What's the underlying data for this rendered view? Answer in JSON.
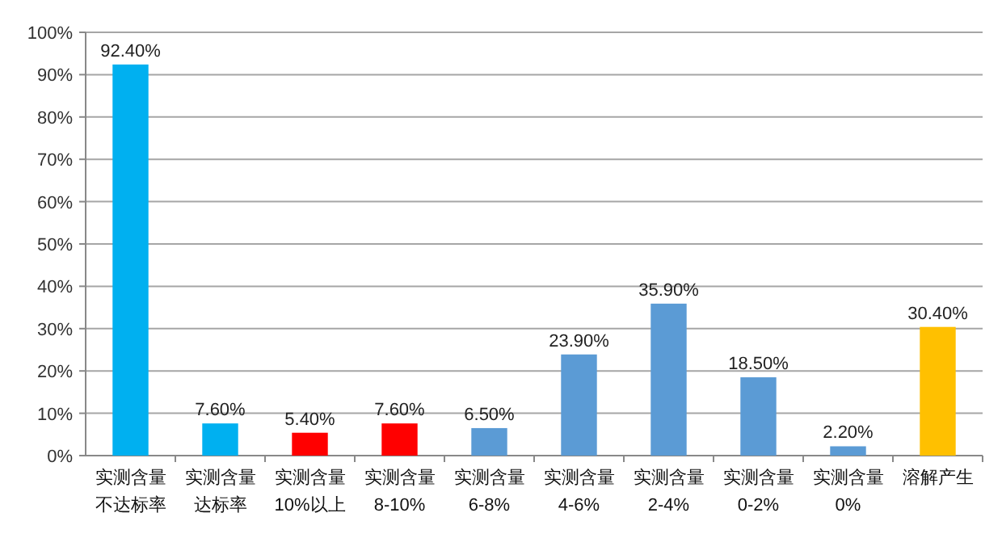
{
  "chart_data": {
    "type": "bar",
    "categories": [
      "实测含量不达标率",
      "实测含量达标率",
      "实测含量10%以上",
      "实测含量8-10%",
      "实测含量6-8%",
      "实测含量4-6%",
      "实测含量2-4%",
      "实测含量0-2%",
      "实测含量0%",
      "溶解产生"
    ],
    "values": [
      92.4,
      7.6,
      5.4,
      7.6,
      6.5,
      23.9,
      35.9,
      18.5,
      2.2,
      30.4
    ],
    "colors": [
      "#00b0f0",
      "#00b0f0",
      "#ff0000",
      "#ff0000",
      "#5b9bd5",
      "#5b9bd5",
      "#5b9bd5",
      "#5b9bd5",
      "#5b9bd5",
      "#ffc000"
    ],
    "value_labels": [
      "92.40%",
      "7.60%",
      "5.40%",
      "7.60%",
      "6.50%",
      "23.90%",
      "35.90%",
      "18.50%",
      "2.20%",
      "30.40%"
    ],
    "ylim": [
      0,
      100
    ],
    "yticks": [
      {
        "value": 0,
        "label": "0%"
      },
      {
        "value": 10,
        "label": "10%"
      },
      {
        "value": 20,
        "label": "20%"
      },
      {
        "value": 30,
        "label": "30%"
      },
      {
        "value": 40,
        "label": "40%"
      },
      {
        "value": 50,
        "label": "50%"
      },
      {
        "value": 60,
        "label": "60%"
      },
      {
        "value": 70,
        "label": "70%"
      },
      {
        "value": 80,
        "label": "80%"
      },
      {
        "value": 90,
        "label": "90%"
      },
      {
        "value": 100,
        "label": "100%"
      }
    ],
    "grid": "y"
  }
}
